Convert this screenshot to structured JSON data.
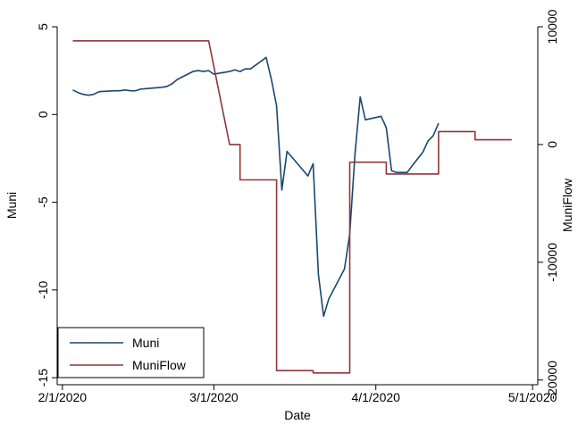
{
  "chart_data": {
    "type": "line",
    "xlabel": "Date",
    "ylabel_left": "Muni",
    "ylabel_right": "MuniFlow",
    "x_ticks": [
      "2/1/2020",
      "3/1/2020",
      "4/1/2020",
      "5/1/2020"
    ],
    "y_left_ticks": [
      "5",
      "0",
      "-5",
      "-10",
      "-15"
    ],
    "y_right_ticks": [
      "10000",
      "0",
      "-10000",
      "-20000"
    ],
    "xlim": [
      "2020-01-31",
      "2020-05-02"
    ],
    "ylim_left": [
      -15.4,
      5
    ],
    "ylim_right": [
      -20400,
      10000
    ],
    "grid": false,
    "legend_position": "bottom-left",
    "colors": {
      "muni": "#1a476f",
      "muniflow": "#90353b"
    },
    "series": [
      {
        "name": "Muni",
        "axis": "left",
        "points": [
          [
            "2020-02-03",
            1.4
          ],
          [
            "2020-02-04",
            1.25
          ],
          [
            "2020-02-05",
            1.15
          ],
          [
            "2020-02-06",
            1.1
          ],
          [
            "2020-02-07",
            1.15
          ],
          [
            "2020-02-08",
            1.3
          ],
          [
            "2020-02-11",
            1.35
          ],
          [
            "2020-02-12",
            1.35
          ],
          [
            "2020-02-13",
            1.4
          ],
          [
            "2020-02-14",
            1.35
          ],
          [
            "2020-02-15",
            1.35
          ],
          [
            "2020-02-16",
            1.45
          ],
          [
            "2020-02-18",
            1.5
          ],
          [
            "2020-02-20",
            1.55
          ],
          [
            "2020-02-21",
            1.6
          ],
          [
            "2020-02-22",
            1.75
          ],
          [
            "2020-02-23",
            2.0
          ],
          [
            "2020-02-24",
            2.15
          ],
          [
            "2020-02-26",
            2.45
          ],
          [
            "2020-02-27",
            2.5
          ],
          [
            "2020-02-28",
            2.45
          ],
          [
            "2020-02-29",
            2.5
          ],
          [
            "2020-03-01",
            2.3
          ],
          [
            "2020-03-02",
            2.35
          ],
          [
            "2020-03-03",
            2.4
          ],
          [
            "2020-03-04",
            2.45
          ],
          [
            "2020-03-05",
            2.55
          ],
          [
            "2020-03-06",
            2.45
          ],
          [
            "2020-03-07",
            2.6
          ],
          [
            "2020-03-08",
            2.6
          ],
          [
            "2020-03-11",
            3.25
          ],
          [
            "2020-03-12",
            2.0
          ],
          [
            "2020-03-13",
            0.5
          ],
          [
            "2020-03-14",
            -4.3
          ],
          [
            "2020-03-15",
            -2.1
          ],
          [
            "2020-03-19",
            -3.5
          ],
          [
            "2020-03-20",
            -2.8
          ],
          [
            "2020-03-21",
            -9.1
          ],
          [
            "2020-03-22",
            -11.5
          ],
          [
            "2020-03-23",
            -10.5
          ],
          [
            "2020-03-26",
            -8.8
          ],
          [
            "2020-03-27",
            -6.8
          ],
          [
            "2020-03-28",
            -2.3
          ],
          [
            "2020-03-29",
            1.0
          ],
          [
            "2020-03-30",
            -0.3
          ],
          [
            "2020-04-02",
            -0.1
          ],
          [
            "2020-04-03",
            -0.75
          ],
          [
            "2020-04-04",
            -3.2
          ],
          [
            "2020-04-05",
            -3.3
          ],
          [
            "2020-04-06",
            -3.3
          ],
          [
            "2020-04-07",
            -3.3
          ],
          [
            "2020-04-08",
            -2.9
          ],
          [
            "2020-04-10",
            -2.15
          ],
          [
            "2020-04-11",
            -1.5
          ],
          [
            "2020-04-12",
            -1.2
          ],
          [
            "2020-04-13",
            -0.5
          ]
        ]
      },
      {
        "name": "MuniFlow",
        "axis": "right",
        "points": [
          [
            "2020-02-03",
            8800
          ],
          [
            "2020-02-29",
            8800
          ],
          [
            "2020-03-04",
            0
          ],
          [
            "2020-03-06",
            0
          ],
          [
            "2020-03-06",
            -3000
          ],
          [
            "2020-03-13",
            -3000
          ],
          [
            "2020-03-13",
            -19200
          ],
          [
            "2020-03-20",
            -19200
          ],
          [
            "2020-03-20",
            -19400
          ],
          [
            "2020-03-27",
            -19400
          ],
          [
            "2020-03-27",
            -1500
          ],
          [
            "2020-04-03",
            -1500
          ],
          [
            "2020-04-03",
            -2500
          ],
          [
            "2020-04-13",
            -2500
          ],
          [
            "2020-04-13",
            1100
          ],
          [
            "2020-04-20",
            1100
          ],
          [
            "2020-04-20",
            400
          ],
          [
            "2020-04-27",
            400
          ]
        ]
      }
    ]
  }
}
